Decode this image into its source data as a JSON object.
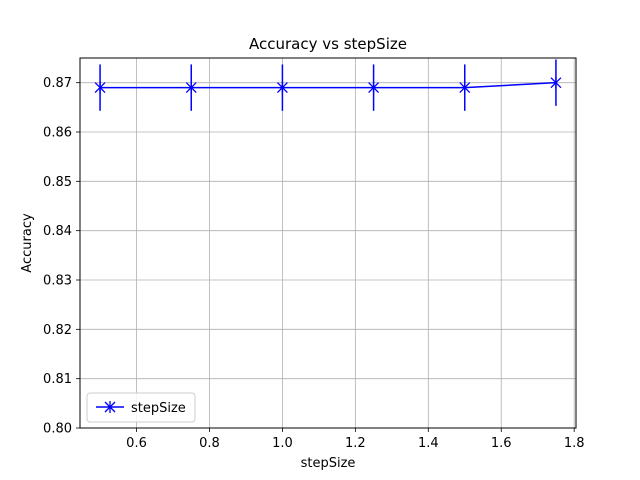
{
  "chart_data": {
    "type": "line",
    "title": "Accuracy vs stepSize",
    "xlabel": "stepSize",
    "ylabel": "Accuracy",
    "xlim": [
      0.445,
      1.805
    ],
    "ylim": [
      0.8,
      0.875
    ],
    "x_ticks": [
      0.6,
      0.8,
      1.0,
      1.2,
      1.4,
      1.6,
      1.8
    ],
    "x_tick_labels": [
      "0.6",
      "0.8",
      "1.0",
      "1.2",
      "1.4",
      "1.6",
      "1.8"
    ],
    "y_ticks": [
      0.8,
      0.81,
      0.82,
      0.83,
      0.84,
      0.85,
      0.86,
      0.87
    ],
    "y_tick_labels": [
      "0.80",
      "0.81",
      "0.82",
      "0.83",
      "0.84",
      "0.85",
      "0.86",
      "0.87"
    ],
    "grid": true,
    "legend_position": "lower-left",
    "series": [
      {
        "name": "stepSize",
        "color": "#0000ff",
        "marker": "x-star",
        "x": [
          0.5,
          0.75,
          1.0,
          1.25,
          1.5,
          1.75
        ],
        "y": [
          0.869,
          0.869,
          0.869,
          0.869,
          0.869,
          0.87
        ],
        "yerr": [
          0.0047,
          0.0047,
          0.0047,
          0.0047,
          0.0047,
          0.0047
        ]
      }
    ]
  }
}
